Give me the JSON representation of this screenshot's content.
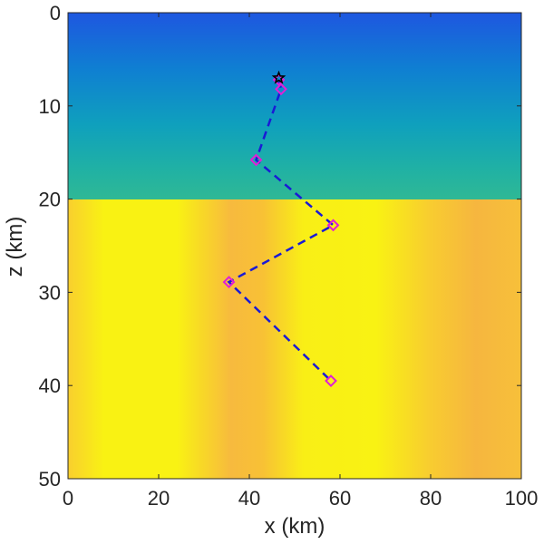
{
  "chart_data": {
    "type": "scatter",
    "title": "",
    "xlabel": "x (km)",
    "ylabel": "z (km)",
    "xlim": [
      0,
      100
    ],
    "ylim": [
      50,
      0
    ],
    "y_axis_direction": "reversed",
    "x_ticks": [
      "0",
      "20",
      "40",
      "60",
      "80",
      "100"
    ],
    "y_ticks": [
      "0",
      "10",
      "20",
      "30",
      "40",
      "50"
    ],
    "grid": false,
    "legend": "none",
    "background": {
      "kind": "heatmap",
      "layers": [
        {
          "z_range": [
            0,
            20
          ],
          "colors": [
            "#2c2fa8",
            "#1564e0",
            "#0f9cc0",
            "#27b49e",
            "#7fba78",
            "#ab8c82"
          ],
          "x_minima": [
            38,
            88
          ]
        },
        {
          "z_range": [
            20,
            50
          ],
          "colors": [
            "#f9f211",
            "#fbd228",
            "#f7b540"
          ],
          "x_darker_bands": [
            0,
            40,
            90
          ]
        }
      ]
    },
    "series": [
      {
        "x": [
          46.5,
          47.0,
          41.5,
          58.5,
          35.5,
          58.0
        ],
        "y": [
          7.2,
          8.2,
          15.8,
          22.8,
          28.9,
          39.5
        ],
        "line_style": "dashed",
        "line_color": "#1a1ad6",
        "marker": "diamond",
        "marker_color": "#e11fd6"
      }
    ],
    "annotations": [
      {
        "type": "star",
        "x": 46.5,
        "y": 7.0,
        "color": "#000000"
      }
    ]
  }
}
